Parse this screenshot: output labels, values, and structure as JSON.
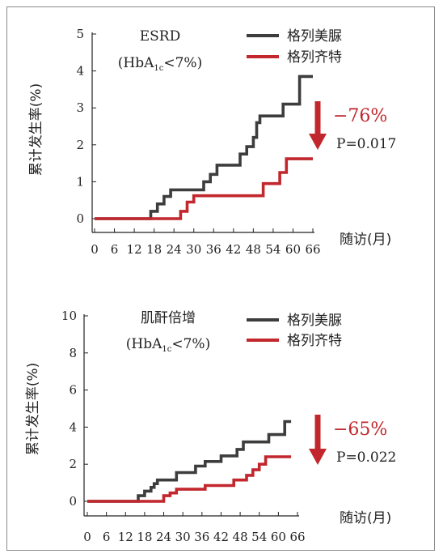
{
  "chart_data": [
    {
      "type": "line",
      "title": "ESRD",
      "subtitle": "(HbA1c<7%)",
      "subtitle_parts": {
        "pre": "(HbA",
        "sub": "1c",
        "post": "<7%)"
      },
      "ylabel": "累计发生率(%)",
      "xlabel": "随访(月)",
      "xlim": [
        0,
        66
      ],
      "ylim": [
        0,
        5
      ],
      "xticks": [
        0,
        6,
        12,
        18,
        24,
        30,
        36,
        42,
        48,
        54,
        60,
        66
      ],
      "yticks": [
        0,
        1,
        2,
        3,
        4,
        5
      ],
      "legend_position": "top-right",
      "annotation_percent": "−76%",
      "annotation_p": "P=0.017",
      "series": [
        {
          "name": "格列美脲",
          "color": "#3d3d3d",
          "x": [
            0,
            17,
            17,
            19,
            19,
            21,
            21,
            23,
            23,
            33,
            33,
            35,
            35,
            37,
            37,
            44,
            44,
            46,
            46,
            48,
            48,
            49,
            49,
            50,
            50,
            57,
            57,
            62,
            62,
            66
          ],
          "y": [
            0,
            0,
            0.2,
            0.2,
            0.4,
            0.4,
            0.6,
            0.6,
            0.78,
            0.78,
            1.0,
            1.0,
            1.2,
            1.2,
            1.45,
            1.45,
            1.75,
            1.75,
            1.95,
            1.95,
            2.2,
            2.2,
            2.6,
            2.6,
            2.78,
            2.78,
            3.1,
            3.1,
            3.85,
            3.85
          ]
        },
        {
          "name": "格列齐特",
          "color": "#c1272d",
          "x": [
            0,
            26,
            26,
            28,
            28,
            30,
            30,
            32,
            32,
            51,
            51,
            56,
            56,
            58,
            58,
            66
          ],
          "y": [
            0,
            0,
            0.2,
            0.2,
            0.45,
            0.45,
            0.62,
            0.62,
            0.62,
            0.62,
            0.95,
            0.95,
            1.25,
            1.25,
            1.62,
            1.62
          ]
        }
      ]
    },
    {
      "type": "line",
      "title": "肌酐倍增",
      "subtitle": "(HbA1c<7%)",
      "subtitle_parts": {
        "pre": "(HbA",
        "sub": "1c",
        "post": "<7%)"
      },
      "ylabel": "累计发生率(%)",
      "xlabel": "随访(月)",
      "xlim": [
        0,
        66
      ],
      "ylim": [
        0,
        10
      ],
      "xticks": [
        0,
        6,
        12,
        18,
        24,
        30,
        36,
        42,
        48,
        54,
        60,
        66
      ],
      "yticks": [
        0,
        2,
        4,
        6,
        8,
        10
      ],
      "legend_position": "top-right",
      "annotation_percent": "−65%",
      "annotation_p": "P=0.022",
      "series": [
        {
          "name": "格列美脲",
          "color": "#3d3d3d",
          "x": [
            0,
            16,
            16,
            18,
            18,
            20,
            20,
            21,
            21,
            22,
            22,
            28,
            28,
            34,
            34,
            37,
            37,
            42,
            42,
            47,
            47,
            49,
            49,
            57,
            57,
            62,
            62,
            64
          ],
          "y": [
            0,
            0,
            0.3,
            0.3,
            0.55,
            0.55,
            0.75,
            0.75,
            0.95,
            0.95,
            1.15,
            1.15,
            1.55,
            1.55,
            1.9,
            1.9,
            2.15,
            2.15,
            2.45,
            2.45,
            2.8,
            2.8,
            3.2,
            3.2,
            3.6,
            3.6,
            4.3,
            4.3
          ]
        },
        {
          "name": "格列齐特",
          "color": "#c1272d",
          "x": [
            0,
            24,
            24,
            26,
            26,
            28,
            28,
            37,
            37,
            46,
            46,
            50,
            50,
            52,
            52,
            54,
            54,
            56,
            56,
            64
          ],
          "y": [
            0,
            0,
            0.3,
            0.3,
            0.45,
            0.45,
            0.65,
            0.65,
            0.85,
            0.85,
            1.15,
            1.15,
            1.4,
            1.4,
            1.7,
            1.7,
            2.0,
            2.0,
            2.4,
            2.4
          ]
        }
      ]
    }
  ]
}
